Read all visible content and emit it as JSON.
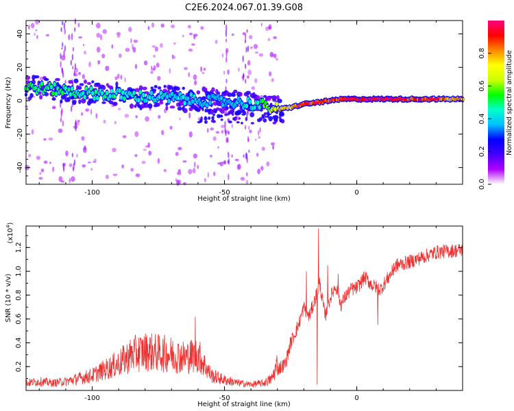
{
  "title": "C2E6.2024.067.01.39.G08",
  "chart_data": [
    {
      "type": "heatmap",
      "xlabel": "Height of straight line (km)",
      "ylabel": "Frequency (Hz)",
      "xlim": [
        -125,
        40
      ],
      "ylim": [
        -50,
        48
      ],
      "xticks": [
        -100,
        -50,
        0
      ],
      "yticks": [
        -40,
        -20,
        0,
        20,
        40
      ],
      "colorbar": {
        "label": "Normalized spectral amplitude",
        "range": [
          0,
          1
        ],
        "ticks": [
          "0.0",
          "0.2",
          "0.4",
          "0.6",
          "0.8"
        ],
        "colors": [
          "#ffffff",
          "#b000ff",
          "#4400ff",
          "#0000ff",
          "#00bfff",
          "#00ffcc",
          "#00ff00",
          "#ccff00",
          "#ffff00",
          "#ff8800",
          "#ff0000",
          "#ff0080"
        ]
      },
      "ridge": {
        "x": [
          -123,
          -115,
          -105,
          -95,
          -85,
          -75,
          -65,
          -55,
          -45,
          -38,
          -33,
          -29,
          -25,
          -20,
          -15,
          -10,
          -5,
          0,
          10,
          20,
          30,
          40
        ],
        "y": [
          8,
          7,
          5,
          4,
          3,
          2,
          1,
          0,
          -1,
          -2,
          -4,
          -5,
          -4,
          -2,
          -1,
          0,
          1,
          1,
          1,
          1,
          1,
          1
        ],
        "amplitude": [
          0.55,
          0.55,
          0.5,
          0.5,
          0.5,
          0.45,
          0.45,
          0.4,
          0.4,
          0.5,
          0.65,
          0.8,
          0.85,
          0.9,
          0.92,
          0.95,
          0.95,
          1.0,
          1.0,
          0.95,
          0.9,
          0.85
        ]
      }
    },
    {
      "type": "line",
      "xlabel": "Height of straight line (km)",
      "ylabel": "SNR (10 * v/v)",
      "multiplier": "(x10",
      "multiplier_exp": "4",
      "multiplier_close": ")",
      "xlim": [
        -125,
        40
      ],
      "ylim": [
        0,
        1.38
      ],
      "xticks": [
        -100,
        -50,
        0
      ],
      "yticks": [
        0.2,
        0.4,
        0.6,
        0.8,
        1.0,
        1.2
      ],
      "color": "#ee3030",
      "x": [
        -125,
        -120,
        -115,
        -110,
        -105,
        -100,
        -95,
        -90,
        -85,
        -80,
        -75,
        -70,
        -65,
        -60,
        -55,
        -50,
        -45,
        -40,
        -35,
        -32,
        -30,
        -27,
        -25,
        -22,
        -20,
        -18,
        -16,
        -14,
        -12,
        -10,
        -8,
        -6,
        -4,
        -2,
        0,
        3,
        6,
        9,
        12,
        15,
        20,
        25,
        30,
        35,
        40
      ],
      "y": [
        0.05,
        0.06,
        0.05,
        0.06,
        0.08,
        0.1,
        0.14,
        0.18,
        0.24,
        0.26,
        0.25,
        0.24,
        0.22,
        0.24,
        0.1,
        0.07,
        0.05,
        0.04,
        0.05,
        0.08,
        0.18,
        0.22,
        0.4,
        0.55,
        0.7,
        0.62,
        0.75,
        0.9,
        0.62,
        0.78,
        0.88,
        0.72,
        0.8,
        0.85,
        0.86,
        0.95,
        0.88,
        0.85,
        0.95,
        1.05,
        1.08,
        1.12,
        1.16,
        1.17,
        1.18
      ],
      "spikes": [
        {
          "x": -14.5,
          "y": 1.36
        },
        {
          "x": -15,
          "y": 0.05
        },
        {
          "x": -11,
          "y": 1.05
        },
        {
          "x": -19,
          "y": 1.0
        },
        {
          "x": -7,
          "y": 0.98
        },
        {
          "x": 8,
          "y": 0.55
        },
        {
          "x": 14,
          "y": 1.07
        },
        {
          "x": -61,
          "y": 0.62
        }
      ]
    }
  ]
}
